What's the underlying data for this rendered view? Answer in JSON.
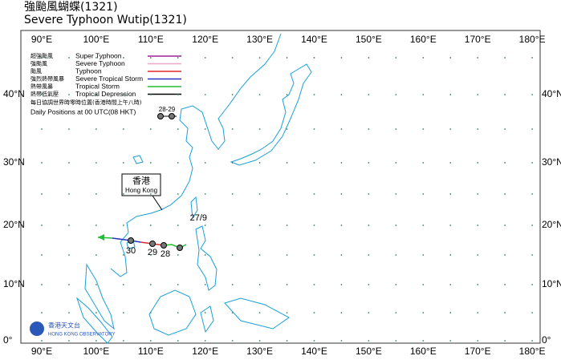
{
  "title_zh": "強颱風蝴蝶(1321)",
  "title_en": "Severe Typhoon Wutip(1321)",
  "map": {
    "lon_labels": [
      "90°E",
      "100°E",
      "110°E",
      "120°E",
      "130°E",
      "140°E",
      "150°E",
      "160°E",
      "170°E",
      "180°E"
    ],
    "lat_labels": [
      "0°",
      "10°N",
      "20°N",
      "30°N",
      "40°N"
    ]
  },
  "legend": [
    {
      "zh": "超強颱風",
      "en": "Super Typhoon",
      "color": "#a0209a"
    },
    {
      "zh": "強颱風",
      "en": "Severe Typhoon",
      "color": "#f0a8c8"
    },
    {
      "zh": "颱風",
      "en": "Typhoon",
      "color": "#e02828"
    },
    {
      "zh": "強烈熱帶風暴",
      "en": "Severe Tropical Storm",
      "color": "#2830c0"
    },
    {
      "zh": "熱帶風暴",
      "en": "Tropical Storm",
      "color": "#20c030"
    },
    {
      "zh": "熱帶低氣壓",
      "en": "Tropical Depression",
      "color": "#000000"
    }
  ],
  "legend_note_zh": "每日協調世界時零時位置(香港時間上午八時)",
  "legend_note_en": "Daily Positions at 00 UTC(08 HKT)",
  "legend_sample_label": "28-29",
  "hong_kong": {
    "zh": "香港",
    "en": "Hong Kong"
  },
  "track_labels": [
    "27/9",
    "28",
    "29",
    "30"
  ],
  "logo": {
    "zh": "香港天文台",
    "en": "HONG KONG OBSERVATORY"
  }
}
